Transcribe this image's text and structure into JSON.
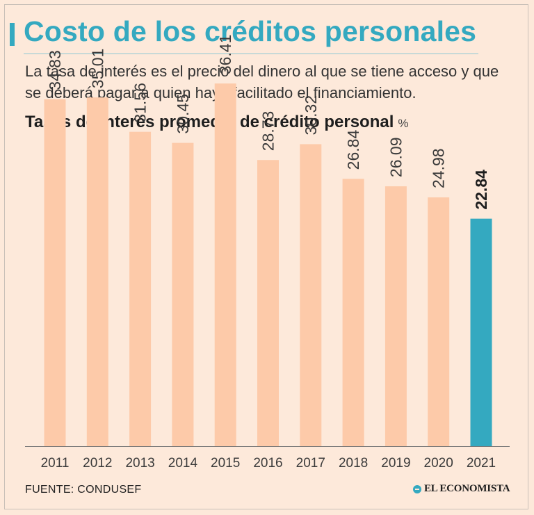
{
  "header": {
    "title": "Costo de los créditos personales",
    "subtitle": "La tasa de interés es el precio del dinero al que se tiene acceso y que se deberá pagar a quien haya facilitado el financiamiento."
  },
  "chart_heading": {
    "title": "Tasas de interés promedio de crédito personal",
    "unit": "%"
  },
  "colors": {
    "bar": "#fdcaa9",
    "highlight": "#34a9c0",
    "accent": "#34a9c0",
    "background": "#fde9da"
  },
  "chart_data": {
    "type": "bar",
    "title": "Tasas de interés promedio de crédito personal",
    "ylabel": "%",
    "xlabel": "",
    "categories": [
      "2011",
      "2012",
      "2013",
      "2014",
      "2015",
      "2016",
      "2017",
      "2018",
      "2019",
      "2020",
      "2021"
    ],
    "values": [
      34.83,
      35.01,
      31.56,
      30.45,
      36.41,
      28.73,
      30.32,
      26.84,
      26.09,
      24.98,
      22.84
    ],
    "labels": [
      "34.83",
      "35.01",
      "31.56",
      "30.45",
      "36.41",
      "28.73",
      "30.32",
      "26.84",
      "26.09",
      "24.98",
      "22.84"
    ],
    "highlight_category": "2021",
    "ylim": [
      0,
      40
    ],
    "grid": false,
    "legend": "none"
  },
  "footer": {
    "source": "FUENTE: CONDUSEF",
    "logo": "EL ECONOMISTA"
  }
}
